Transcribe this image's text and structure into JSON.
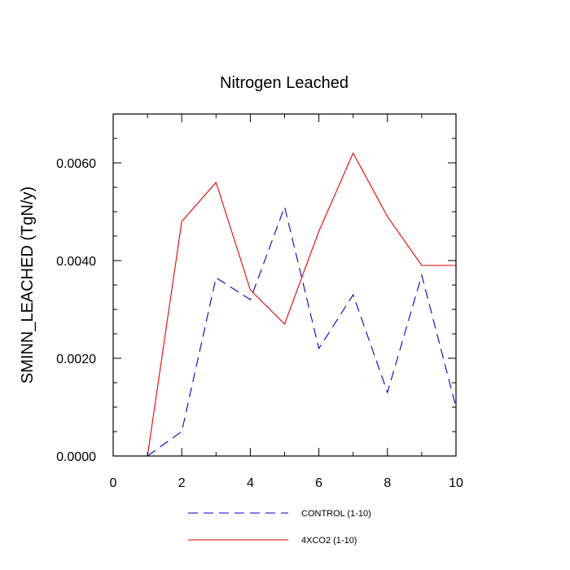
{
  "chart_data": {
    "type": "line",
    "title": "Nitrogen Leached",
    "xlabel": "",
    "ylabel": "SMINN_LEACHED  (TgN/y)",
    "xlim": [
      0,
      10
    ],
    "ylim": [
      0,
      0.007
    ],
    "x_ticks": [
      0,
      2,
      4,
      6,
      8,
      10
    ],
    "x_tick_labels": [
      "0",
      "2",
      "4",
      "6",
      "8",
      "10"
    ],
    "y_ticks": [
      0,
      0.002,
      0.004,
      0.006
    ],
    "y_tick_labels": [
      "0.0000",
      "0.0020",
      "0.0040",
      "0.0060"
    ],
    "grid": false,
    "legend_position": "bottom",
    "x": [
      1,
      2,
      3,
      4,
      5,
      6,
      7,
      8,
      9,
      10
    ],
    "series": [
      {
        "name": "CONTROL (1-10)",
        "color": "#0000cc",
        "dash": "dashed",
        "values": [
          0.0,
          0.0005,
          0.00365,
          0.0032,
          0.0051,
          0.0022,
          0.0033,
          0.0013,
          0.0037,
          0.001
        ]
      },
      {
        "name": "4XCO2 (1-10)",
        "color": "#ee0000",
        "dash": "solid",
        "values": [
          0.0,
          0.0048,
          0.0056,
          0.0034,
          0.0027,
          0.0046,
          0.0062,
          0.0049,
          0.0039,
          0.0039
        ]
      }
    ]
  }
}
